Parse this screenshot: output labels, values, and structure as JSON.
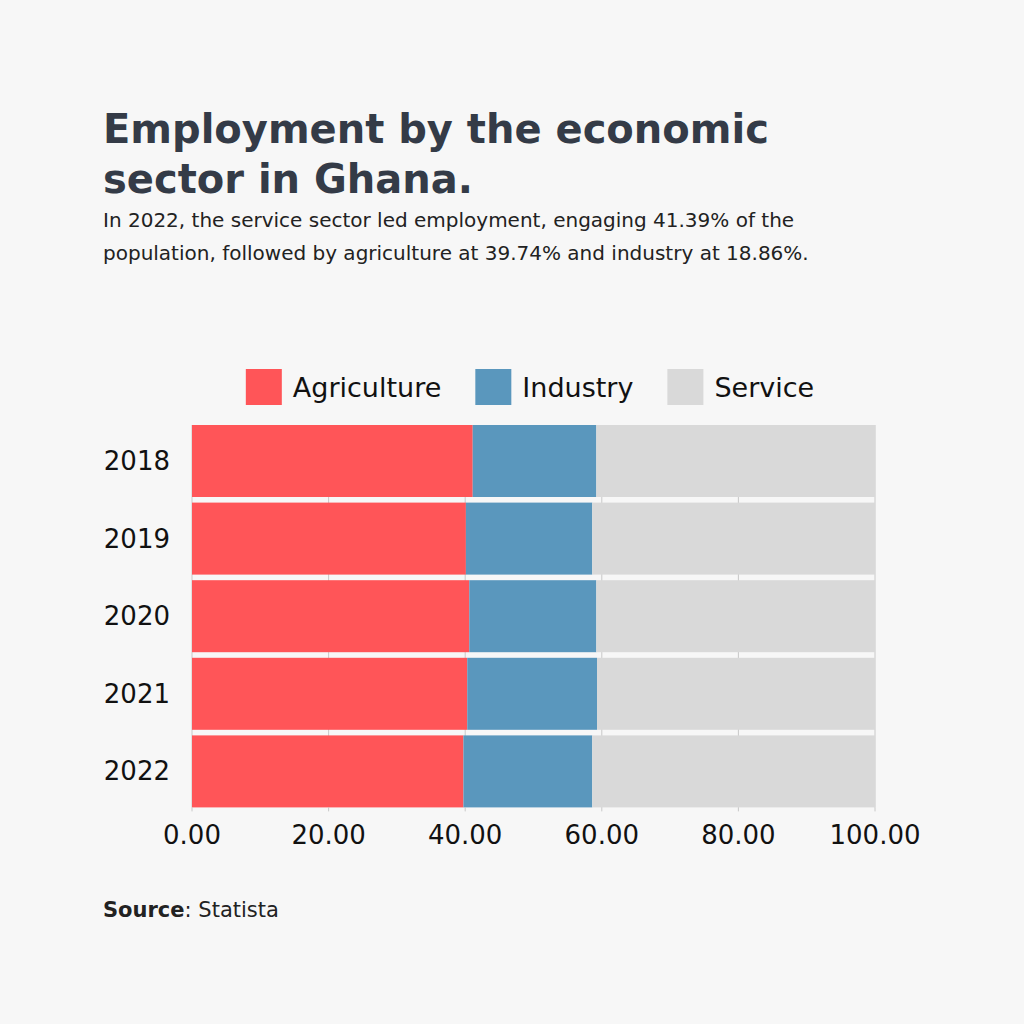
{
  "chart_data": {
    "type": "bar",
    "orientation": "horizontal",
    "stacked": true,
    "title": "Employment by the economic sector in Ghana.",
    "subtitle": "In 2022, the service sector led employment, engaging 41.39% of the population, followed by agriculture at 39.74% and industry at 18.86%.",
    "source": "Source: Statista",
    "categories": [
      "2018",
      "2019",
      "2020",
      "2021",
      "2022"
    ],
    "series": [
      {
        "name": "Agriculture",
        "color": "#ff5558",
        "values": [
          41.1,
          40.1,
          40.6,
          40.3,
          39.74
        ]
      },
      {
        "name": "Industry",
        "color": "#5a97bd",
        "values": [
          18.1,
          18.5,
          18.6,
          19.0,
          18.86
        ]
      },
      {
        "name": "Service",
        "color": "#d9d9d9",
        "values": [
          40.8,
          41.4,
          40.8,
          40.7,
          41.39
        ]
      }
    ],
    "xlim": [
      0,
      100
    ],
    "xticks": [
      {
        "value": 0,
        "label": "0.00"
      },
      {
        "value": 20,
        "label": "20.00"
      },
      {
        "value": 40,
        "label": "40.00"
      },
      {
        "value": 60,
        "label": "60.00"
      },
      {
        "value": 80,
        "label": "80.00"
      },
      {
        "value": 100,
        "label": "100.00"
      }
    ],
    "grid": true,
    "legend": "top"
  }
}
